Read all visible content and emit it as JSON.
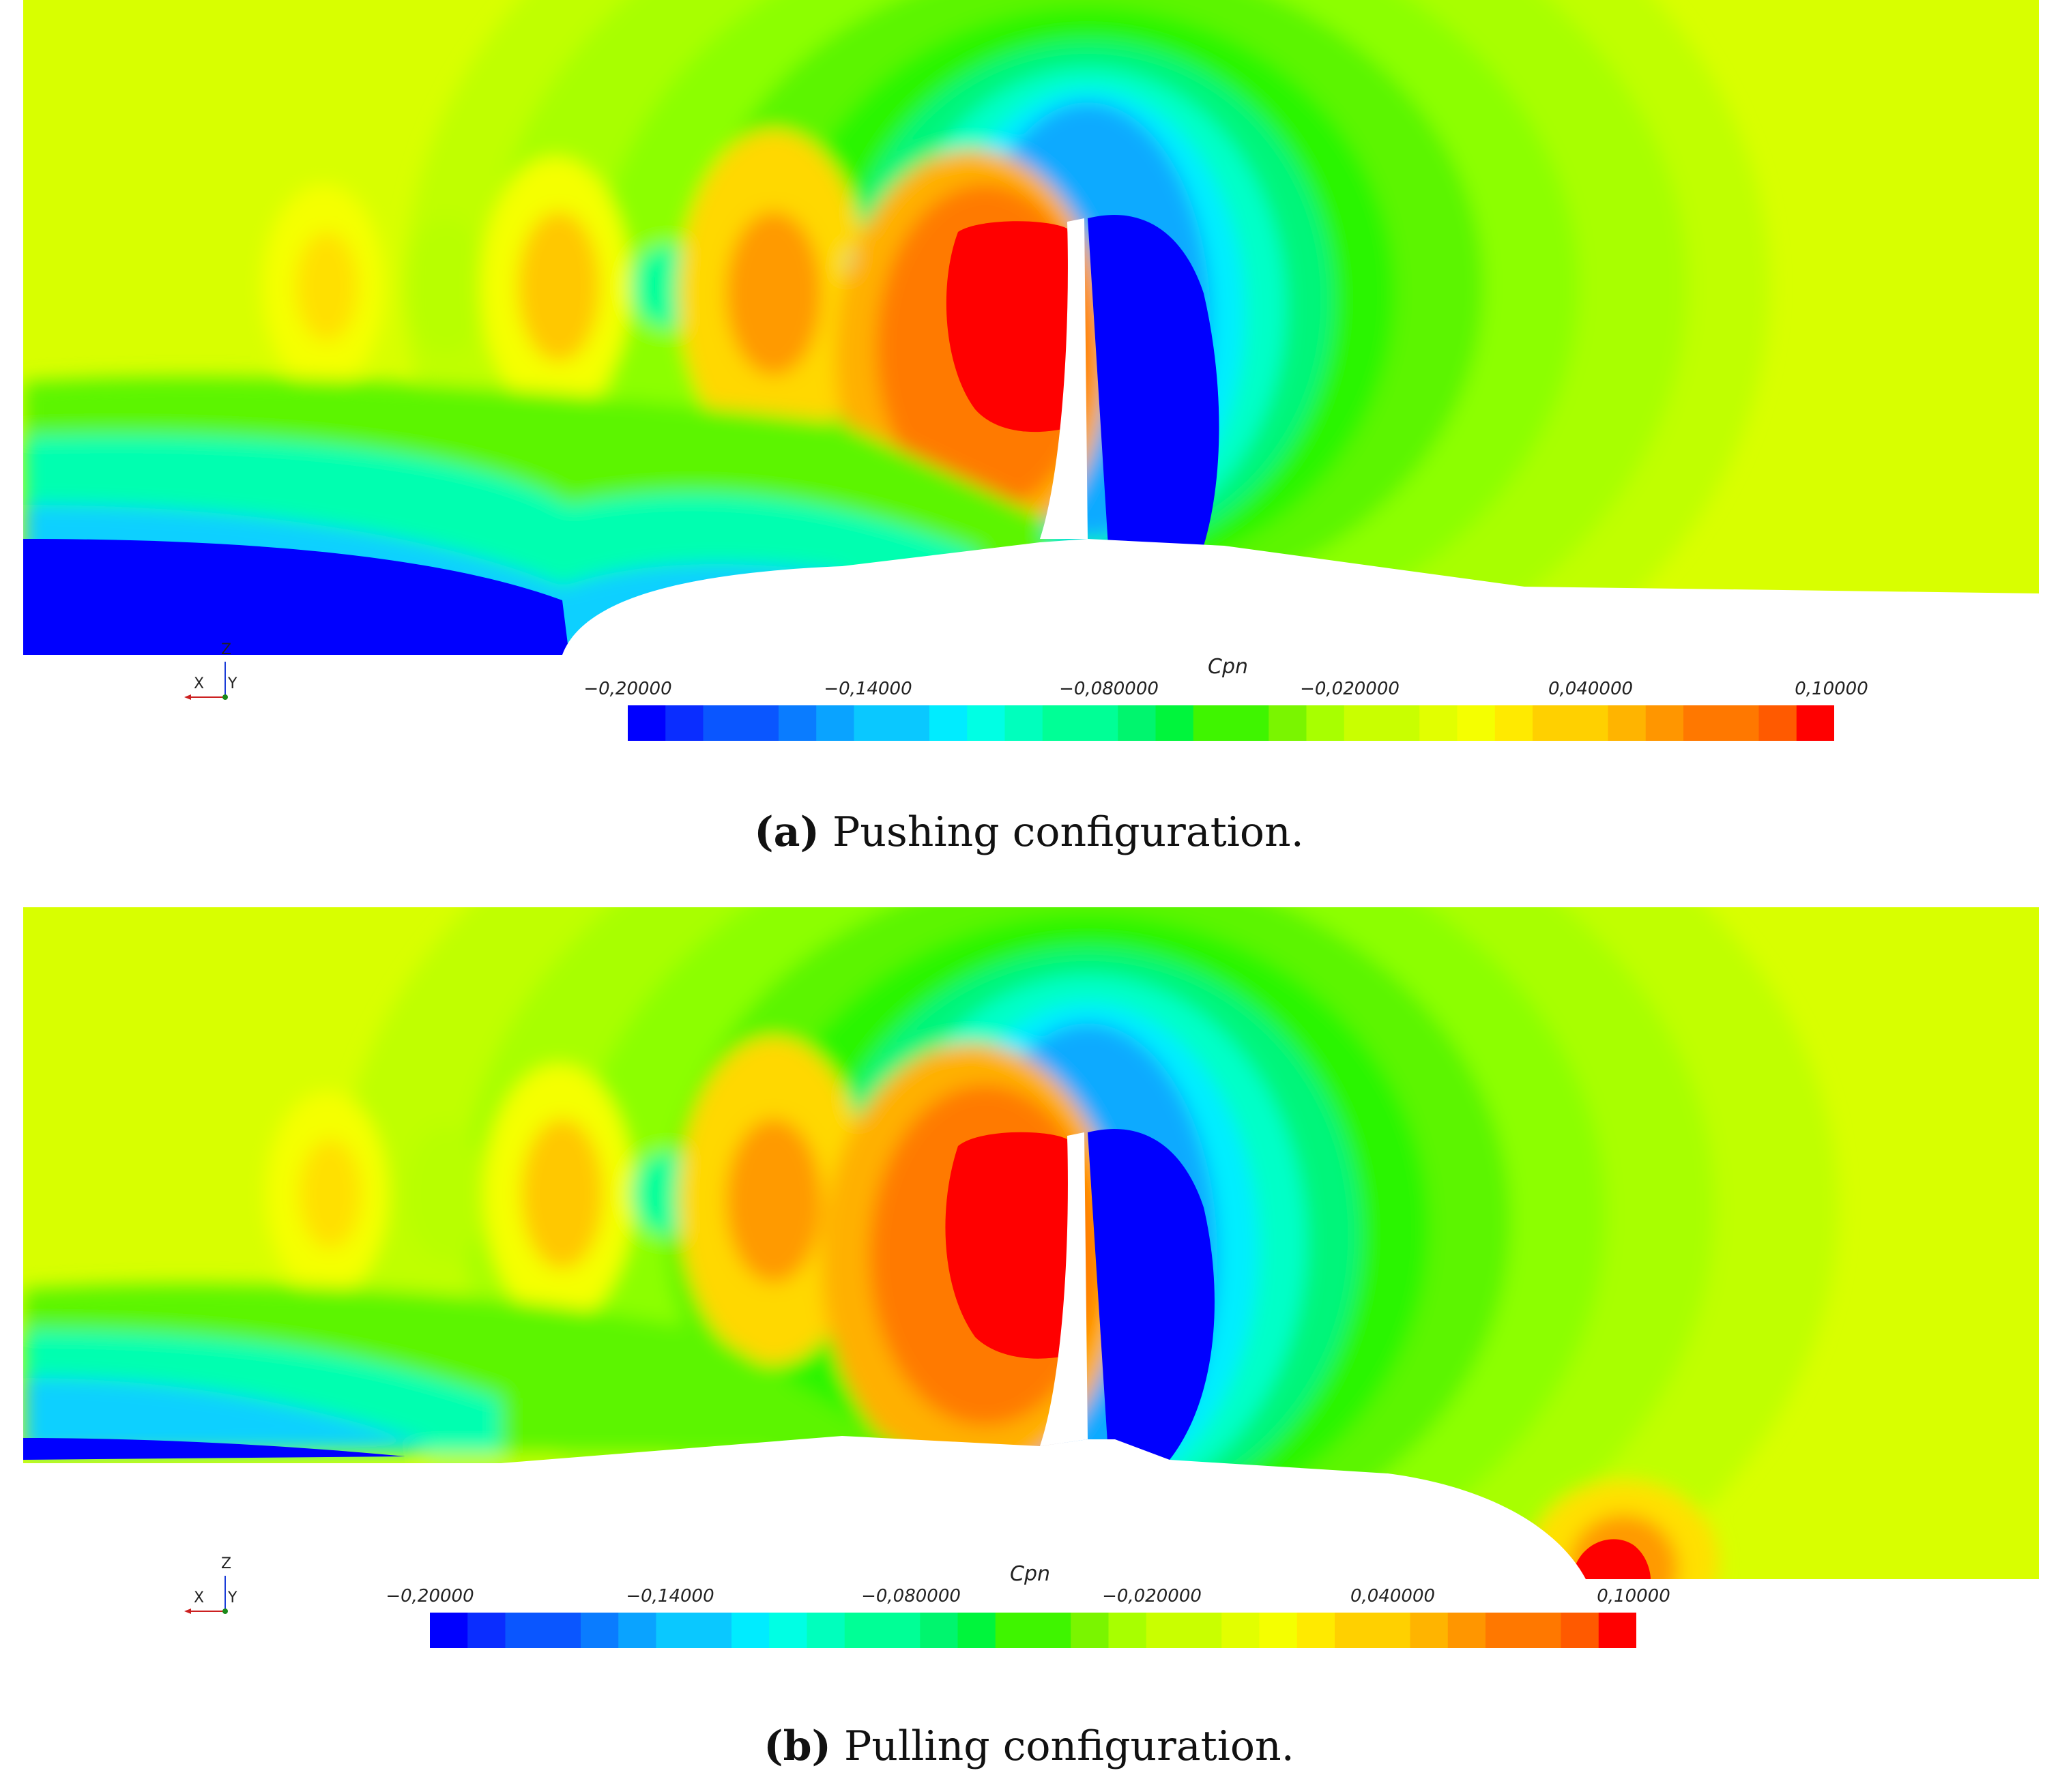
{
  "colormap": [
    "#0000ff",
    "#0a2dff",
    "#0a56ff",
    "#0a7cff",
    "#0aa3ff",
    "#0ac8ff",
    "#00ecff",
    "#00ffe4",
    "#00ffbd",
    "#00ff96",
    "#00f56e",
    "#00f53c",
    "#3ff500",
    "#7af500",
    "#a8ff00",
    "#c9ff00",
    "#e2ff00",
    "#f5ff00",
    "#ffea00",
    "#ffd000",
    "#ffb400",
    "#ff9600",
    "#ff7800",
    "#ff5a00",
    "#ff0000"
  ],
  "chart_data": [
    {
      "type": "heatmap",
      "panel": "a",
      "caption_letter": "(a)",
      "caption_text": "Pushing configuration.",
      "colorbar_title": "Cpn",
      "colorbar_ticks": [
        "−0,20000",
        "−0,14000",
        "−0,080000",
        "−0,020000",
        "0,040000",
        "0,10000"
      ],
      "colorbar_range": [
        -0.2,
        0.1
      ],
      "colorbar_levels": 32,
      "axes_triad": {
        "x": "X",
        "y": "Y",
        "z": "Z"
      }
    },
    {
      "type": "heatmap",
      "panel": "b",
      "caption_letter": "(b)",
      "caption_text": "Pulling configuration.",
      "colorbar_title": "Cpn",
      "colorbar_ticks": [
        "−0,20000",
        "−0,14000",
        "−0,080000",
        "−0,020000",
        "0,040000",
        "0,10000"
      ],
      "colorbar_range": [
        -0.2,
        0.1
      ],
      "colorbar_levels": 32,
      "axes_triad": {
        "x": "X",
        "y": "Y",
        "z": "Z"
      }
    }
  ]
}
